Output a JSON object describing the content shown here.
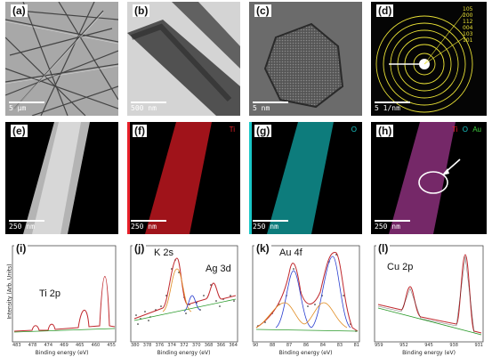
{
  "panels_top": [
    {
      "tag": "(a)",
      "scale": "5 μm"
    },
    {
      "tag": "(b)",
      "scale": "500 nm"
    },
    {
      "tag": "(c)",
      "scale": "5 nm"
    },
    {
      "tag": "(d)",
      "scale": "5 1/nm",
      "rings": [
        "105",
        "200",
        "112",
        "004",
        "103",
        "101"
      ]
    }
  ],
  "panels_mid": [
    {
      "tag": "(e)",
      "scale": "250 nm"
    },
    {
      "tag": "(f)",
      "scale": "250 nm",
      "elements": [
        "Ti"
      ]
    },
    {
      "tag": "(g)",
      "scale": "250 nm",
      "elements": [
        "O"
      ]
    },
    {
      "tag": "(h)",
      "scale": "250 nm",
      "elements": [
        "Ti",
        "O",
        "Au"
      ]
    }
  ],
  "colors": {
    "ti": "#e8202a",
    "o": "#19c7c7",
    "au": "#3fd33f",
    "ring": "#e8e035",
    "fit": "#c0282d",
    "bg_line": "#2a9a2a",
    "comp_blue": "#2a3fd0",
    "comp_orange": "#e08a1e"
  },
  "chart_data": [
    {
      "type": "line",
      "tag": "(i)",
      "peak_label": "Ti 2p",
      "xlabel": "Binding energy (eV)",
      "ylabel": "Intensity (Arb. Units)",
      "x_ticks": [
        "483",
        "478",
        "474",
        "469",
        "465",
        "460",
        "455"
      ]
    },
    {
      "type": "line",
      "tag": "(j)",
      "peak_label": "K 2s",
      "peak_label_2": "Ag 3d",
      "xlabel": "Binding energy (eV)",
      "x_ticks": [
        "380",
        "378",
        "376",
        "374",
        "372",
        "370",
        "368",
        "366",
        "364"
      ]
    },
    {
      "type": "line",
      "tag": "(k)",
      "peak_label": "Au 4f",
      "xlabel": "Binding energy (eV)",
      "x_ticks": [
        "90",
        "88",
        "87",
        "86",
        "84",
        "83",
        "81"
      ]
    },
    {
      "type": "line",
      "tag": "(l)",
      "peak_label": "Cu 2p",
      "xlabel": "Binding energy (eV)",
      "x_ticks": [
        "959",
        "952",
        "945",
        "938",
        "931"
      ]
    }
  ]
}
